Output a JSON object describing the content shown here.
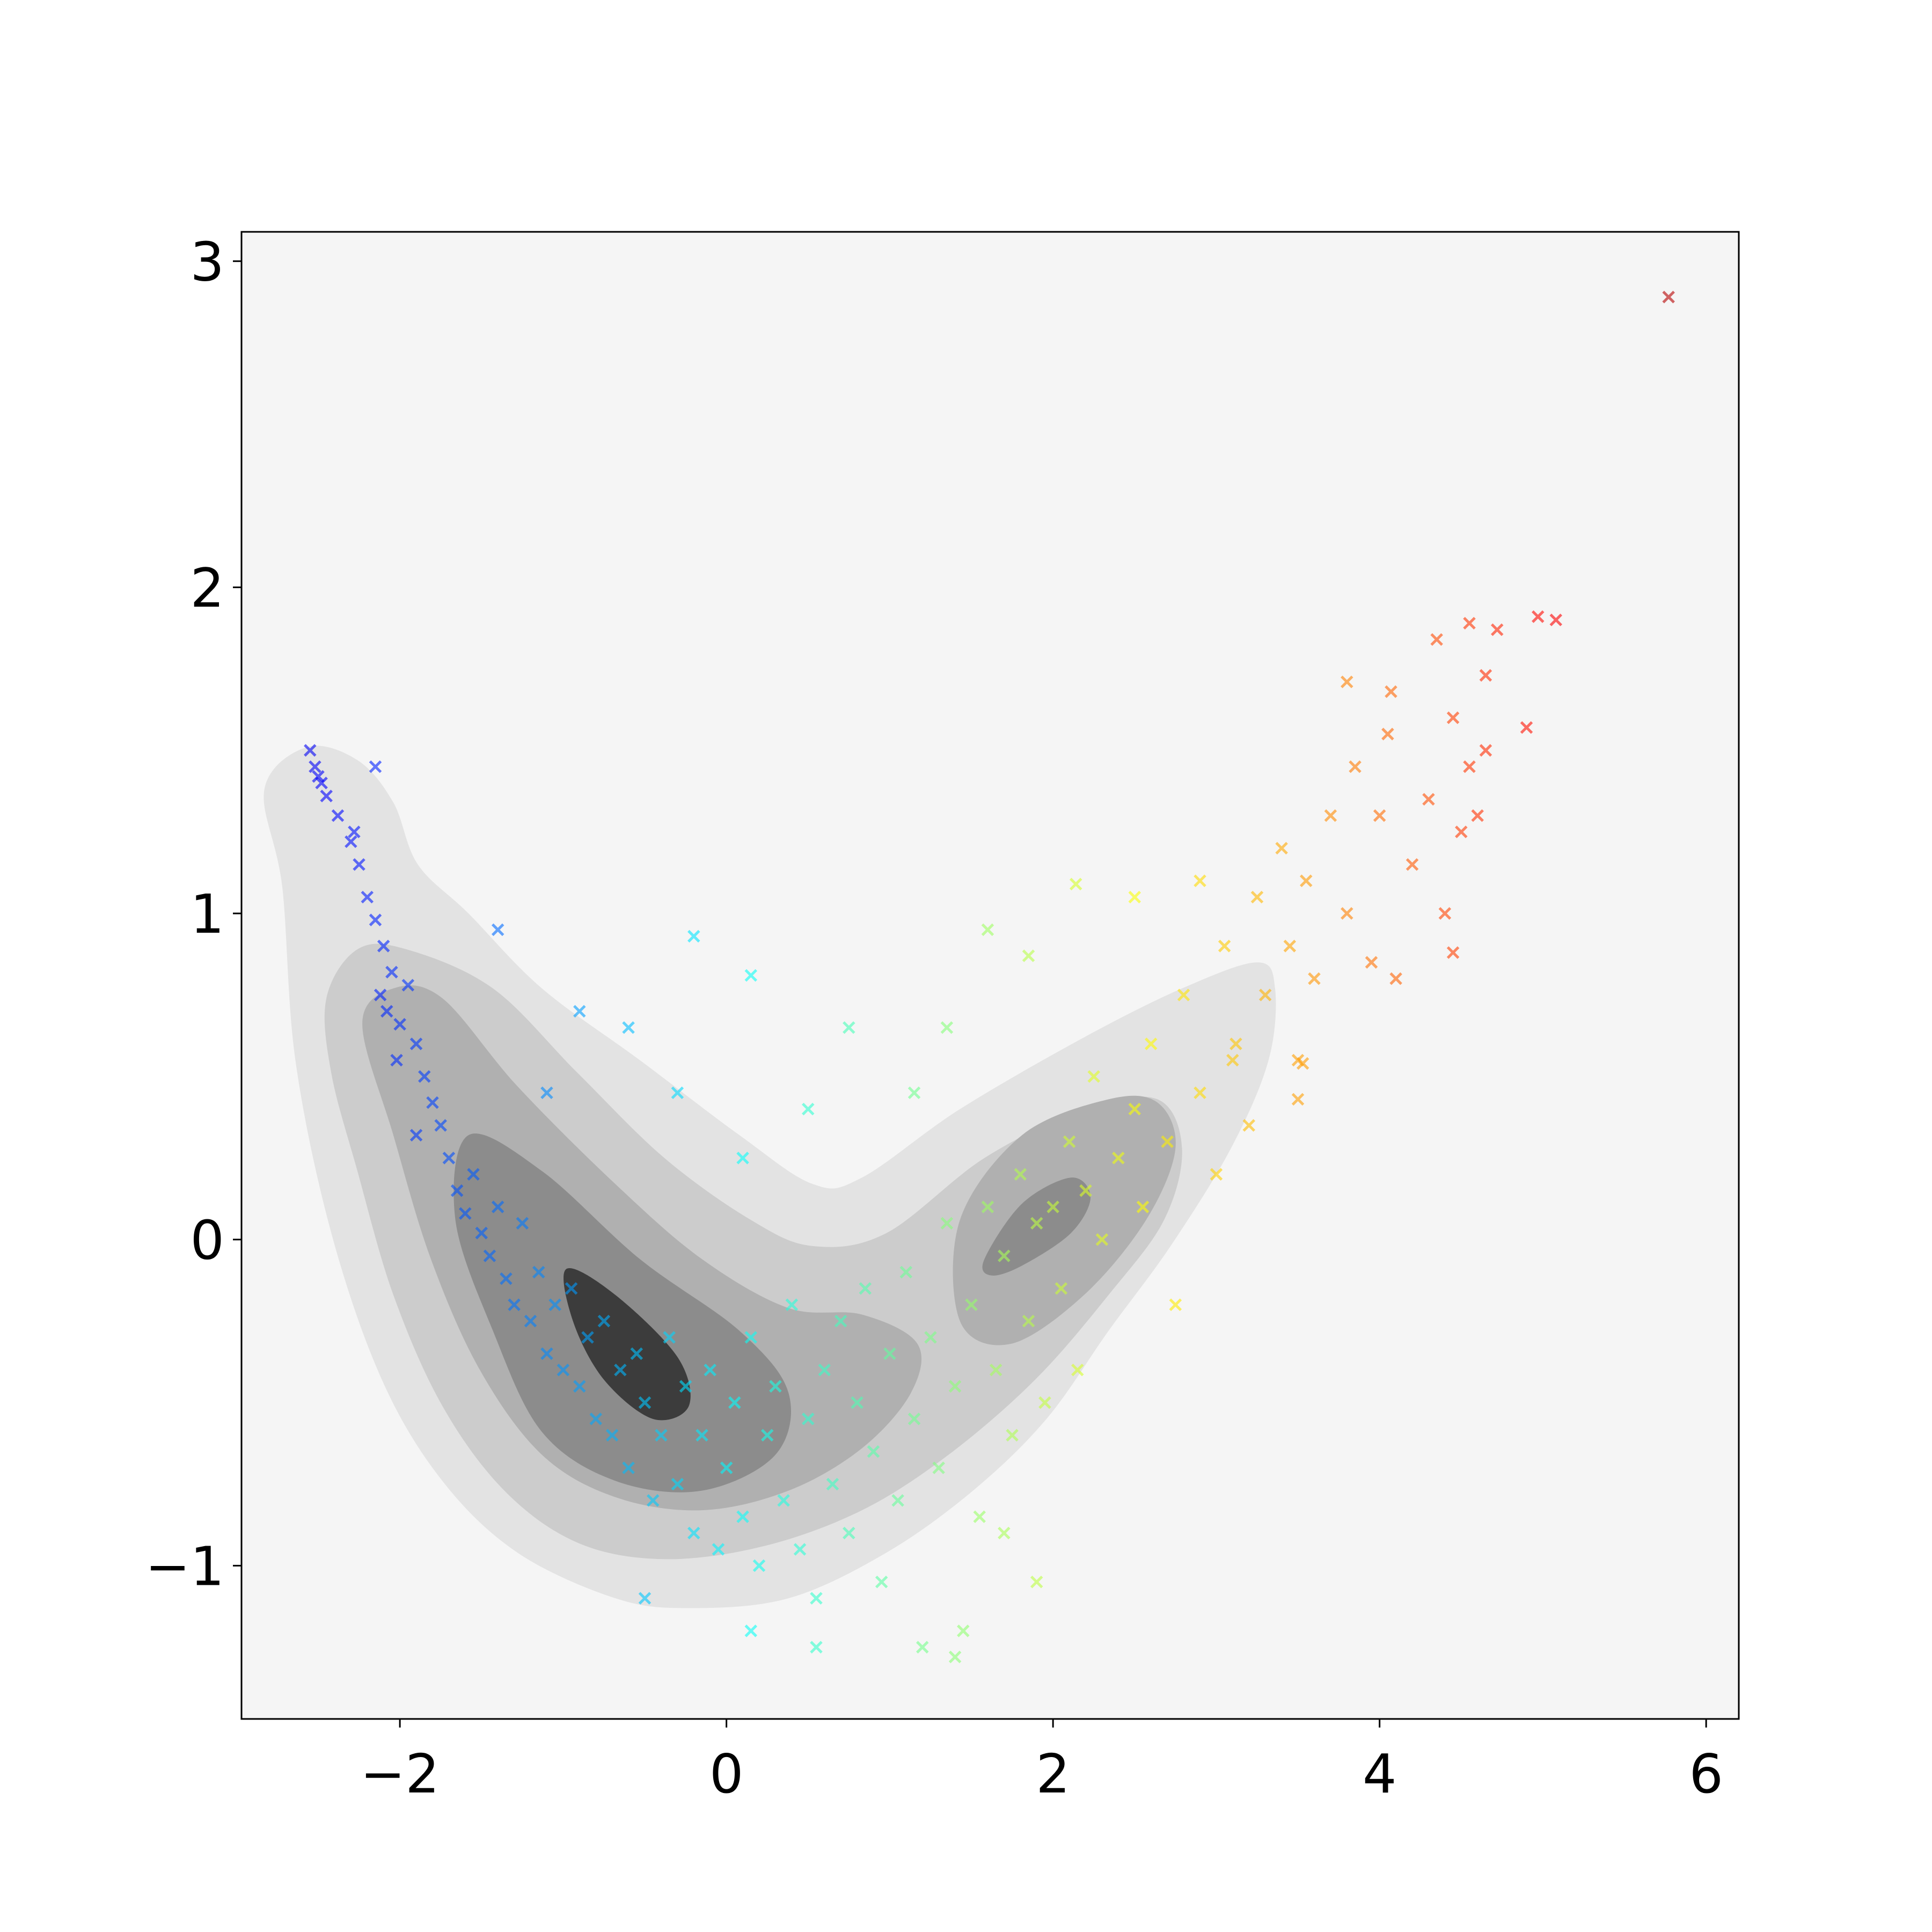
{
  "chart_data": {
    "type": "scatter",
    "title": "",
    "xlabel": "",
    "ylabel": "",
    "xlim": [
      -2.97,
      6.2
    ],
    "ylim": [
      -1.47,
      3.09
    ],
    "x_ticks": [
      -2,
      0,
      2,
      4,
      6
    ],
    "y_ticks": [
      -1,
      0,
      1,
      2,
      3
    ],
    "x_tick_labels": [
      "−2",
      "0",
      "2",
      "4",
      "6"
    ],
    "y_tick_labels": [
      "−1",
      "0",
      "1",
      "2",
      "3"
    ],
    "grid": false,
    "legend": "none",
    "background_color": "#f5f5f5",
    "marker": "x",
    "colormap": "jet",
    "color_range": [
      -3.7,
      6.3
    ],
    "marker_alpha": 0.6,
    "density_contours": {
      "colors": [
        "#e3e3e3",
        "#cccccc",
        "#b0b0b0",
        "#8c8c8c",
        "#3c3c3c"
      ],
      "levels": [
        {
          "polygons": [
            [
              [
                -2.83,
                1.38
              ],
              [
                -2.57,
                1.51
              ],
              [
                -2.26,
                1.47
              ],
              [
                -2.04,
                1.34
              ],
              [
                -1.89,
                1.15
              ],
              [
                -1.58,
                1.0
              ],
              [
                -1.13,
                0.77
              ],
              [
                -0.53,
                0.55
              ],
              [
                0.08,
                0.32
              ],
              [
                0.53,
                0.17
              ],
              [
                0.83,
                0.19
              ],
              [
                1.43,
                0.4
              ],
              [
                2.19,
                0.62
              ],
              [
                2.79,
                0.77
              ],
              [
                3.25,
                0.85
              ],
              [
                3.36,
                0.77
              ],
              [
                3.32,
                0.55
              ],
              [
                3.09,
                0.28
              ],
              [
                2.72,
                -0.02
              ],
              [
                2.34,
                -0.28
              ],
              [
                1.96,
                -0.55
              ],
              [
                1.51,
                -0.77
              ],
              [
                0.98,
                -0.96
              ],
              [
                0.38,
                -1.1
              ],
              [
                -0.23,
                -1.13
              ],
              [
                -0.68,
                -1.1
              ],
              [
                -1.28,
                -0.96
              ],
              [
                -1.74,
                -0.74
              ],
              [
                -2.11,
                -0.43
              ],
              [
                -2.42,
                0.02
              ],
              [
                -2.64,
                0.55
              ],
              [
                -2.72,
                1.08
              ]
            ]
          ]
        },
        {
          "polygons": [
            [
              [
                -2.45,
                0.74
              ],
              [
                -2.26,
                0.89
              ],
              [
                -1.96,
                0.89
              ],
              [
                -1.43,
                0.77
              ],
              [
                -0.91,
                0.51
              ],
              [
                -0.38,
                0.25
              ],
              [
                0.15,
                0.06
              ],
              [
                0.53,
                -0.02
              ],
              [
                0.98,
                0.02
              ],
              [
                1.58,
                0.25
              ],
              [
                2.19,
                0.4
              ],
              [
                2.64,
                0.43
              ],
              [
                2.79,
                0.28
              ],
              [
                2.68,
                0.06
              ],
              [
                2.34,
                -0.17
              ],
              [
                1.89,
                -0.43
              ],
              [
                1.36,
                -0.66
              ],
              [
                0.83,
                -0.83
              ],
              [
                0.23,
                -0.94
              ],
              [
                -0.38,
                -0.98
              ],
              [
                -0.91,
                -0.93
              ],
              [
                -1.36,
                -0.77
              ],
              [
                -1.74,
                -0.51
              ],
              [
                -2.04,
                -0.17
              ],
              [
                -2.26,
                0.21
              ],
              [
                -2.42,
                0.51
              ]
            ]
          ]
        },
        {
          "polygons": [
            [
              [
                -2.23,
                0.66
              ],
              [
                -2.04,
                0.77
              ],
              [
                -1.74,
                0.74
              ],
              [
                -1.28,
                0.47
              ],
              [
                -0.68,
                0.17
              ],
              [
                -0.15,
                -0.06
              ],
              [
                0.38,
                -0.21
              ],
              [
                0.83,
                -0.23
              ],
              [
                1.17,
                -0.32
              ],
              [
                1.13,
                -0.47
              ],
              [
                0.83,
                -0.64
              ],
              [
                0.38,
                -0.77
              ],
              [
                -0.15,
                -0.83
              ],
              [
                -0.68,
                -0.79
              ],
              [
                -1.13,
                -0.66
              ],
              [
                -1.51,
                -0.4
              ],
              [
                -1.81,
                -0.06
              ],
              [
                -2.04,
                0.32
              ]
            ],
            [
              [
                1.43,
                0.06
              ],
              [
                1.81,
                0.32
              ],
              [
                2.34,
                0.43
              ],
              [
                2.64,
                0.42
              ],
              [
                2.75,
                0.28
              ],
              [
                2.57,
                0.06
              ],
              [
                2.19,
                -0.17
              ],
              [
                1.74,
                -0.32
              ],
              [
                1.43,
                -0.25
              ]
            ]
          ]
        },
        {
          "polygons": [
            [
              [
                -1.58,
                0.32
              ],
              [
                -1.13,
                0.21
              ],
              [
                -0.53,
                -0.06
              ],
              [
                0.08,
                -0.28
              ],
              [
                0.38,
                -0.47
              ],
              [
                0.3,
                -0.66
              ],
              [
                -0.15,
                -0.77
              ],
              [
                -0.68,
                -0.74
              ],
              [
                -1.13,
                -0.59
              ],
              [
                -1.43,
                -0.28
              ],
              [
                -1.66,
                0.06
              ]
            ],
            [
              [
                1.58,
                -0.06
              ],
              [
                1.81,
                0.11
              ],
              [
                2.11,
                0.19
              ],
              [
                2.23,
                0.13
              ],
              [
                2.11,
                0.02
              ],
              [
                1.81,
                -0.08
              ],
              [
                1.62,
                -0.11
              ]
            ]
          ]
        },
        {
          "polygons": [
            [
              [
                -0.98,
                -0.09
              ],
              [
                -0.68,
                -0.17
              ],
              [
                -0.3,
                -0.36
              ],
              [
                -0.23,
                -0.51
              ],
              [
                -0.45,
                -0.55
              ],
              [
                -0.75,
                -0.43
              ],
              [
                -0.94,
                -0.25
              ]
            ]
          ]
        }
      ]
    },
    "points": [
      [
        -2.55,
        1.5
      ],
      [
        -2.52,
        1.45
      ],
      [
        -2.48,
        1.4
      ],
      [
        -2.45,
        1.36
      ],
      [
        -2.5,
        1.42
      ],
      [
        -2.38,
        1.3
      ],
      [
        -2.3,
        1.22
      ],
      [
        -2.25,
        1.15
      ],
      [
        -2.28,
        1.25
      ],
      [
        -2.2,
        1.05
      ],
      [
        -2.15,
        0.98
      ],
      [
        -2.1,
        0.9
      ],
      [
        -2.05,
        0.82
      ],
      [
        -2.12,
        0.75
      ],
      [
        -2.08,
        0.7
      ],
      [
        -2.0,
        0.66
      ],
      [
        -1.95,
        0.78
      ],
      [
        -1.9,
        0.6
      ],
      [
        -2.02,
        0.55
      ],
      [
        -1.85,
        0.5
      ],
      [
        -1.8,
        0.42
      ],
      [
        -1.75,
        0.35
      ],
      [
        -1.9,
        0.32
      ],
      [
        -1.7,
        0.25
      ],
      [
        -1.65,
        0.15
      ],
      [
        -1.6,
        0.08
      ],
      [
        -1.55,
        0.2
      ],
      [
        -1.5,
        0.02
      ],
      [
        -1.45,
        -0.05
      ],
      [
        -1.4,
        0.1
      ],
      [
        -1.35,
        -0.12
      ],
      [
        -1.3,
        -0.2
      ],
      [
        -1.25,
        0.05
      ],
      [
        -1.2,
        -0.25
      ],
      [
        -1.15,
        -0.1
      ],
      [
        -1.1,
        -0.35
      ],
      [
        -1.05,
        -0.2
      ],
      [
        -1.0,
        -0.4
      ],
      [
        -0.95,
        -0.15
      ],
      [
        -0.9,
        -0.45
      ],
      [
        -0.85,
        -0.3
      ],
      [
        -0.8,
        -0.55
      ],
      [
        -0.75,
        -0.25
      ],
      [
        -0.7,
        -0.6
      ],
      [
        -0.65,
        -0.4
      ],
      [
        -0.6,
        -0.7
      ],
      [
        -0.55,
        -0.35
      ],
      [
        -0.5,
        -0.5
      ],
      [
        -0.45,
        -0.8
      ],
      [
        -0.4,
        -0.6
      ],
      [
        -0.35,
        -0.3
      ],
      [
        -0.3,
        -0.75
      ],
      [
        -0.25,
        -0.45
      ],
      [
        -0.2,
        -0.9
      ],
      [
        -0.15,
        -0.6
      ],
      [
        -0.1,
        -0.4
      ],
      [
        -0.05,
        -0.95
      ],
      [
        0.0,
        -0.7
      ],
      [
        0.05,
        -0.5
      ],
      [
        0.1,
        -0.85
      ],
      [
        0.15,
        -0.3
      ],
      [
        0.2,
        -1.0
      ],
      [
        0.25,
        -0.6
      ],
      [
        0.3,
        -0.45
      ],
      [
        0.35,
        -0.8
      ],
      [
        0.4,
        -0.2
      ],
      [
        0.45,
        -0.95
      ],
      [
        0.5,
        -0.55
      ],
      [
        0.55,
        -1.1
      ],
      [
        0.6,
        -0.4
      ],
      [
        0.65,
        -0.75
      ],
      [
        0.7,
        -0.25
      ],
      [
        0.75,
        -0.9
      ],
      [
        0.8,
        -0.5
      ],
      [
        0.85,
        -0.15
      ],
      [
        0.9,
        -0.65
      ],
      [
        0.95,
        -1.05
      ],
      [
        1.0,
        -0.35
      ],
      [
        1.05,
        -0.8
      ],
      [
        1.1,
        -0.1
      ],
      [
        1.15,
        -0.55
      ],
      [
        1.2,
        -1.25
      ],
      [
        1.25,
        -0.3
      ],
      [
        1.3,
        -0.7
      ],
      [
        1.35,
        0.05
      ],
      [
        1.4,
        -0.45
      ],
      [
        1.45,
        -1.2
      ],
      [
        1.5,
        -0.2
      ],
      [
        1.55,
        -0.85
      ],
      [
        1.6,
        0.1
      ],
      [
        1.65,
        -0.4
      ],
      [
        1.7,
        -0.05
      ],
      [
        1.75,
        -0.6
      ],
      [
        1.8,
        0.2
      ],
      [
        1.85,
        -0.25
      ],
      [
        1.9,
        0.05
      ],
      [
        1.95,
        -0.5
      ],
      [
        2.0,
        0.1
      ],
      [
        2.05,
        -0.15
      ],
      [
        2.1,
        0.3
      ],
      [
        2.15,
        -0.4
      ],
      [
        2.2,
        0.15
      ],
      [
        2.25,
        0.5
      ],
      [
        2.3,
        0.0
      ],
      [
        2.4,
        0.25
      ],
      [
        2.5,
        0.4
      ],
      [
        2.55,
        0.1
      ],
      [
        2.6,
        0.6
      ],
      [
        2.7,
        0.3
      ],
      [
        2.75,
        -0.2
      ],
      [
        2.8,
        0.75
      ],
      [
        2.9,
        0.45
      ],
      [
        3.0,
        0.2
      ],
      [
        3.05,
        0.9
      ],
      [
        3.1,
        0.55
      ],
      [
        3.2,
        0.35
      ],
      [
        3.25,
        1.05
      ],
      [
        3.3,
        0.75
      ],
      [
        3.4,
        1.2
      ],
      [
        3.45,
        0.9
      ],
      [
        3.5,
        0.55
      ],
      [
        3.55,
        1.1
      ],
      [
        3.6,
        0.8
      ],
      [
        3.7,
        1.3
      ],
      [
        3.8,
        1.0
      ],
      [
        3.85,
        1.45
      ],
      [
        3.95,
        0.85
      ],
      [
        4.0,
        1.3
      ],
      [
        4.05,
        1.55
      ],
      [
        4.1,
        0.8
      ],
      [
        4.2,
        1.15
      ],
      [
        4.3,
        1.35
      ],
      [
        4.4,
        1.0
      ],
      [
        4.45,
        1.6
      ],
      [
        4.5,
        1.25
      ],
      [
        4.55,
        1.45
      ],
      [
        4.6,
        1.3
      ],
      [
        4.65,
        1.5
      ],
      [
        3.8,
        1.71
      ],
      [
        4.07,
        1.68
      ],
      [
        4.35,
        1.84
      ],
      [
        4.55,
        1.89
      ],
      [
        4.72,
        1.87
      ],
      [
        4.97,
        1.91
      ],
      [
        5.08,
        1.9
      ],
      [
        4.9,
        1.57
      ],
      [
        4.65,
        1.73
      ],
      [
        5.77,
        2.89
      ],
      [
        -2.15,
        1.45
      ],
      [
        -1.4,
        0.95
      ],
      [
        -0.2,
        0.93
      ],
      [
        0.15,
        0.81
      ],
      [
        -0.6,
        0.65
      ],
      [
        -0.3,
        0.45
      ],
      [
        0.5,
        0.4
      ],
      [
        0.75,
        0.65
      ],
      [
        1.15,
        0.45
      ],
      [
        1.6,
        0.95
      ],
      [
        1.85,
        0.87
      ],
      [
        2.14,
        1.09
      ],
      [
        2.5,
        1.05
      ],
      [
        2.9,
        1.1
      ],
      [
        1.35,
        0.65
      ],
      [
        0.1,
        0.25
      ],
      [
        -0.9,
        0.7
      ],
      [
        -1.1,
        0.45
      ],
      [
        1.9,
        -1.05
      ],
      [
        1.4,
        -1.28
      ],
      [
        0.15,
        -1.2
      ],
      [
        0.55,
        -1.25
      ],
      [
        -0.5,
        -1.1
      ],
      [
        1.7,
        -0.9
      ],
      [
        3.5,
        0.43
      ],
      [
        3.12,
        0.6
      ],
      [
        3.53,
        0.54
      ],
      [
        4.45,
        0.88
      ]
    ]
  }
}
